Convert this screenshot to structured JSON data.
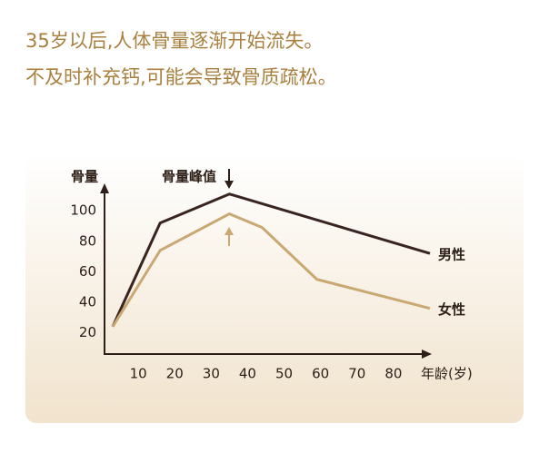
{
  "chart_data": {
    "type": "line",
    "title": "35岁以后,人体骨量逐渐开始流失。",
    "subtitle": "不及时补充钙,可能会导致骨质疏松。",
    "y_label": "骨量",
    "x_label": "年龄(岁)",
    "annotation": "骨量峰值",
    "xlim": [
      0,
      90
    ],
    "ylim": [
      6,
      118
    ],
    "xticks": [
      10,
      20,
      30,
      40,
      50,
      60,
      70,
      80
    ],
    "yticks": [
      20,
      40,
      60,
      80,
      100
    ],
    "series": [
      {
        "name": "男性",
        "color": "#3a2420",
        "x": [
          3,
          16,
          35,
          90
        ],
        "values": [
          24,
          92,
          111,
          72
        ]
      },
      {
        "name": "女性",
        "color": "#c9a872",
        "x": [
          3,
          16,
          35,
          44,
          59,
          90
        ],
        "values": [
          24,
          74,
          98,
          89,
          55,
          36
        ]
      }
    ]
  }
}
